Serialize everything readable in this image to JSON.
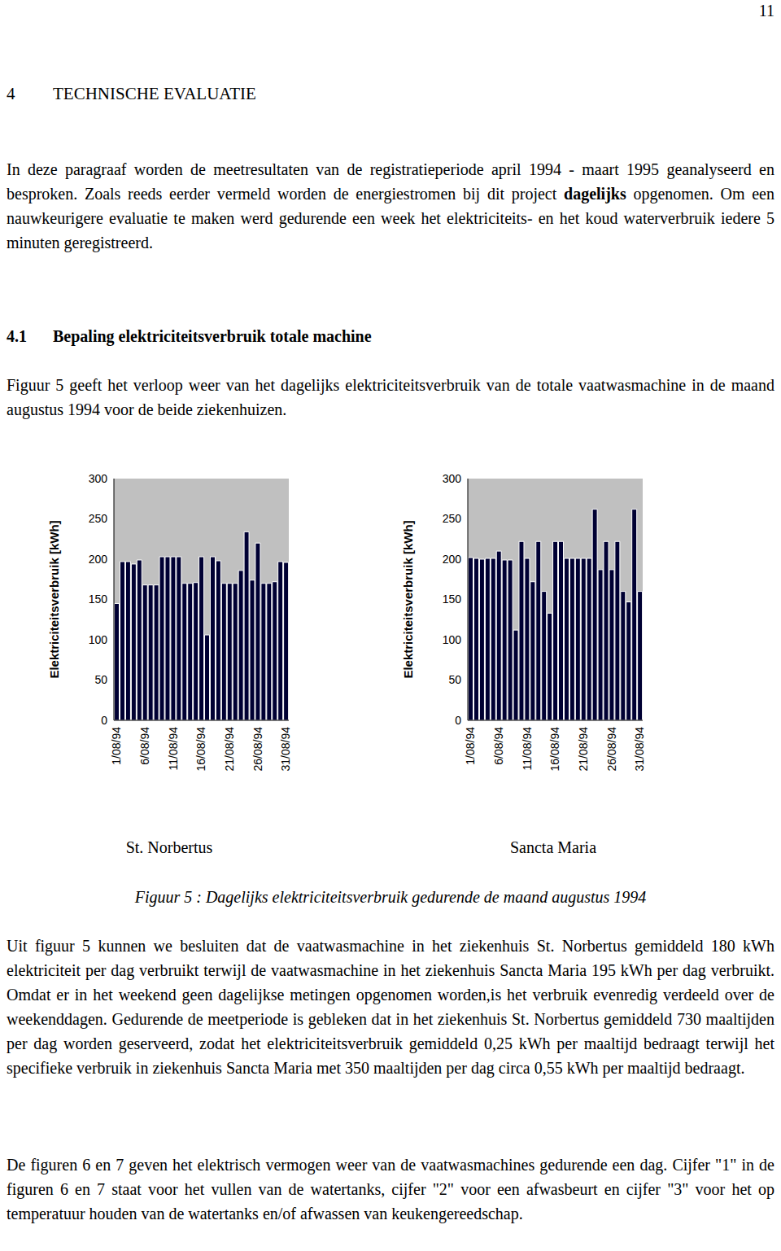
{
  "page_number": "11",
  "heading": {
    "number": "4",
    "title": "TECHNISCHE EVALUATIE"
  },
  "intro": {
    "before": "In deze paragraaf worden de meetresultaten van de registratieperiode april 1994 - maart 1995 geanalyseerd en besproken. Zoals reeds eerder vermeld worden de energiestromen bij dit project ",
    "bold": "dagelijks",
    "after": " opgenomen. Om een nauwkeurigere evaluatie te maken werd gedurende een week het elektriciteits- en het koud waterverbruik iedere 5 minuten geregistreerd."
  },
  "subheading": {
    "number": "4.1",
    "title": "Bepaling elektriciteitsverbruik totale machine"
  },
  "figure_intro": "Figuur 5 geeft het verloop weer van het dagelijks elektriciteitsverbruik van de totale vaatwasmachine in de maand augustus 1994 voor de beide ziekenhuizen.",
  "chart_data": [
    {
      "type": "bar",
      "title": "St. Norbertus",
      "y_label": "Elektriciteitsverbruik [kWh]",
      "categories": [
        "1/08/94",
        null,
        null,
        null,
        null,
        "6/08/94",
        null,
        null,
        null,
        null,
        "11/08/94",
        null,
        null,
        null,
        null,
        "16/08/94",
        null,
        null,
        null,
        null,
        "21/08/94",
        null,
        null,
        null,
        null,
        "26/08/94",
        null,
        null,
        null,
        null,
        "31/08/94"
      ],
      "values": [
        145,
        197,
        197,
        194,
        199,
        168,
        168,
        168,
        203,
        203,
        203,
        203,
        170,
        170,
        171,
        203,
        106,
        203,
        198,
        170,
        170,
        170,
        186,
        234,
        174,
        220,
        170,
        170,
        172,
        197,
        196
      ],
      "color": "#000033",
      "ylim": [
        0,
        300
      ],
      "yticks": [
        0,
        50,
        100,
        150,
        200,
        250,
        300
      ],
      "grid": false
    },
    {
      "type": "bar",
      "title": "Sancta Maria",
      "y_label": "Elektriciteitsverbruik [kWh]",
      "categories": [
        "1/08/94",
        null,
        null,
        null,
        null,
        "6/08/94",
        null,
        null,
        null,
        null,
        "11/08/94",
        null,
        null,
        null,
        null,
        "16/08/94",
        null,
        null,
        null,
        null,
        "21/08/94",
        null,
        null,
        null,
        null,
        "26/08/94",
        null,
        null,
        null,
        null,
        "31/08/94"
      ],
      "values": [
        202,
        201,
        200,
        201,
        201,
        210,
        199,
        199,
        112,
        222,
        201,
        172,
        222,
        160,
        133,
        222,
        222,
        201,
        201,
        201,
        201,
        201,
        262,
        187,
        222,
        187,
        222,
        160,
        147,
        262,
        160
      ],
      "color": "#000033",
      "ylim": [
        0,
        300
      ],
      "yticks": [
        0,
        50,
        100,
        150,
        200,
        250,
        300
      ],
      "grid": false
    }
  ],
  "figure_caption": "Figuur 5 : Dagelijks elektriciteitsverbruik gedurende de maand augustus 1994",
  "paragraphs": [
    "Uit figuur 5 kunnen we besluiten dat de vaatwasmachine in het ziekenhuis St. Norbertus gemiddeld 180 kWh elektriciteit per dag verbruikt terwijl de vaatwasmachine in het ziekenhuis Sancta Maria 195 kWh per dag verbruikt. Omdat er in het weekend geen dagelijkse metingen opgenomen worden,is het verbruik evenredig verdeeld over de weekenddagen. Gedurende de meetperiode is gebleken dat in het ziekenhuis St. Norbertus gemiddeld 730 maaltijden per dag worden geserveerd, zodat het elektriciteitsverbruik gemiddeld 0,25 kWh per maaltijd bedraagt terwijl het specifieke verbruik in ziekenhuis Sancta Maria met 350 maaltijden per dag circa 0,55 kWh per maaltijd bedraagt.",
    "De figuren 6 en 7 geven het elektrisch vermogen weer van de vaatwasmachines gedurende een dag. Cijfer \"1\" in de figuren 6 en 7 staat voor het vullen van de watertanks, cijfer \"2\" voor een afwasbeurt en cijfer \"3\" voor het op temperatuur houden van de watertanks en/of afwassen van keukengereedschap."
  ]
}
